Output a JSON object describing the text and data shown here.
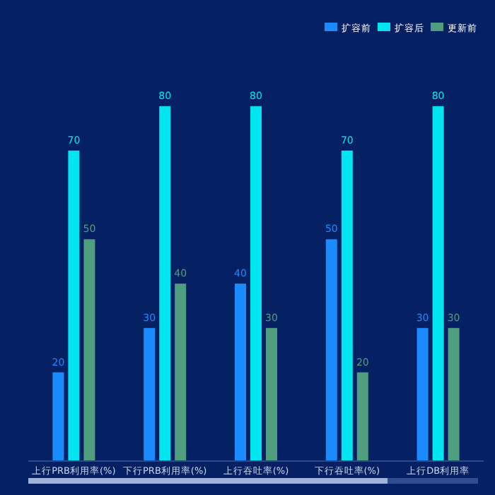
{
  "chart_data": {
    "type": "bar",
    "categories": [
      "上行PRB利用率(%)",
      "下行PRB利用率(%)",
      "上行吞吐率(%)",
      "下行吞吐率(%)",
      "上行DB利用率"
    ],
    "series": [
      {
        "name": "扩容前",
        "color": "#1a8cff",
        "values": [
          20,
          30,
          40,
          50,
          30
        ]
      },
      {
        "name": "扩容后",
        "color": "#00e5f0",
        "values": [
          70,
          80,
          80,
          70,
          80
        ]
      },
      {
        "name": "更新前",
        "color": "#4f9e80",
        "values": [
          50,
          40,
          30,
          20,
          30
        ]
      }
    ],
    "data_labels": true,
    "legend": "top right"
  }
}
